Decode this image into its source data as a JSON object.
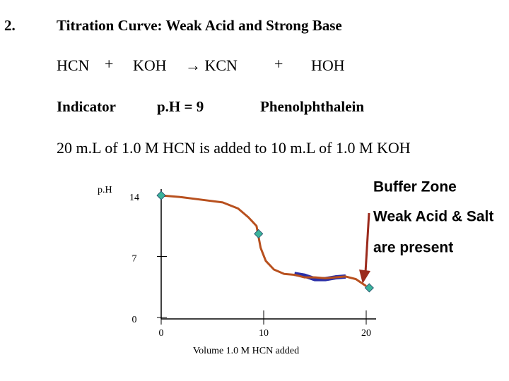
{
  "slide": {
    "number": "2.",
    "title": "Titration Curve: Weak Acid and Strong Base",
    "equation": [
      "HCN",
      "+",
      "KOH",
      "→ KCN",
      "+",
      "HOH"
    ],
    "indicator_label": "Indicator",
    "ph_value": "p.H  =  9",
    "indicator_name": "Phenolphthalein",
    "statement": "20 m.L  of 1.0 M HCN  is added to 10  m.L of 1.0 M KOH"
  },
  "chart_data": {
    "type": "line",
    "ylabel": "p.H",
    "xlabel": "Volume 1.0 M HCN added",
    "x": [
      0,
      2,
      4,
      6,
      7.5,
      8.5,
      9.3,
      9.7,
      10.2,
      11,
      12,
      13,
      14,
      15,
      16,
      17,
      18,
      19,
      20
    ],
    "values": [
      14,
      13.8,
      13.5,
      13.2,
      12.5,
      11.5,
      10.5,
      8,
      6.5,
      5.5,
      5.0,
      4.9,
      4.6,
      4.6,
      4.5,
      4.6,
      4.7,
      4.4,
      3.6
    ],
    "color": "#b8501e",
    "highlight": {
      "x": [
        13,
        14,
        15,
        16,
        17,
        18
      ],
      "values": [
        5.0,
        4.8,
        4.4,
        4.4,
        4.6,
        4.7
      ],
      "color": "#2a2fa8"
    },
    "markers": {
      "x": [
        0,
        9.5,
        20.3
      ],
      "values": [
        14,
        9.6,
        3.4
      ],
      "color": "#3bb39b"
    },
    "xlim": [
      0,
      21
    ],
    "ylim": [
      0,
      14
    ],
    "xticks": [
      0,
      10,
      20
    ],
    "yticks": [
      0,
      7,
      14
    ],
    "annotations": [
      "Buffer Zone",
      "Weak Acid & Salt",
      "are present"
    ]
  }
}
